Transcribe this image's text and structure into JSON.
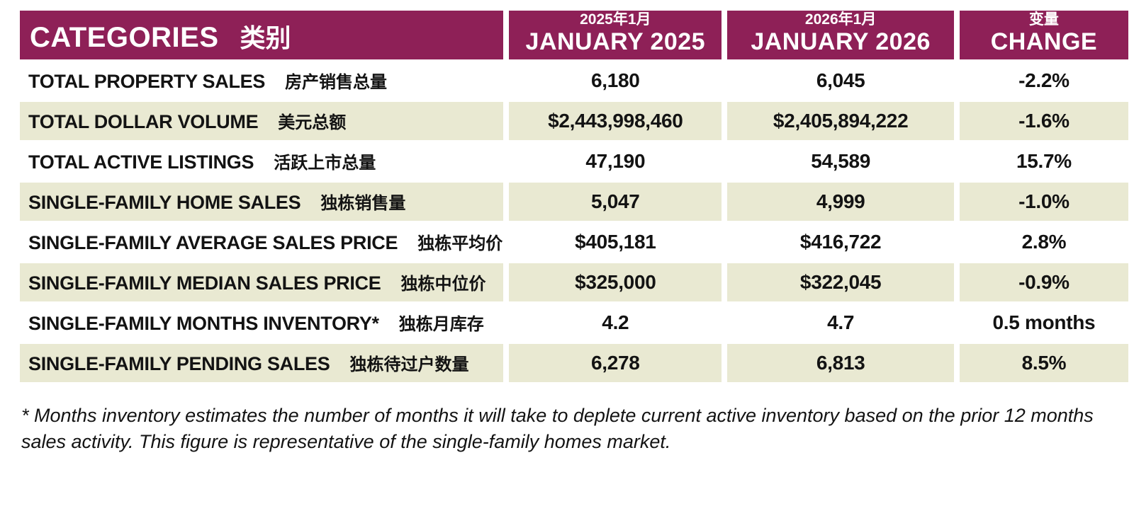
{
  "colors": {
    "header_bg": "#8e2057",
    "alt_row_bg": "#e9e9d2",
    "header_text": "#ffffff",
    "body_text": "#131313"
  },
  "chart_data": {
    "type": "table",
    "title": "Real estate market comparison table, January 2025 vs January 2026",
    "header": {
      "categories": {
        "en": "CATEGORIES",
        "zh": "类别"
      },
      "jan2025": {
        "en": "JANUARY 2025",
        "zh": "2025年1月"
      },
      "jan2026": {
        "en": "JANUARY 2026",
        "zh": "2026年1月"
      },
      "change": {
        "en": "CHANGE",
        "zh": "变量"
      }
    },
    "rows": [
      {
        "en": "TOTAL PROPERTY SALES",
        "zh": "房产销售总量",
        "jan2025": "6,180",
        "jan2026": "6,045",
        "change": "-2.2%"
      },
      {
        "en": "TOTAL DOLLAR VOLUME",
        "zh": "美元总额",
        "jan2025": "$2,443,998,460",
        "jan2026": "$2,405,894,222",
        "change": "-1.6%"
      },
      {
        "en": "TOTAL ACTIVE LISTINGS",
        "zh": "活跃上市总量",
        "jan2025": "47,190",
        "jan2026": "54,589",
        "change": "15.7%"
      },
      {
        "en": "SINGLE-FAMILY HOME SALES",
        "zh": "独栋销售量",
        "jan2025": "5,047",
        "jan2026": "4,999",
        "change": "-1.0%"
      },
      {
        "en": "SINGLE-FAMILY AVERAGE SALES PRICE",
        "zh": "独栋平均价",
        "jan2025": "$405,181",
        "jan2026": "$416,722",
        "change": "2.8%"
      },
      {
        "en": "SINGLE-FAMILY MEDIAN SALES PRICE",
        "zh": "独栋中位价",
        "jan2025": "$325,000",
        "jan2026": "$322,045",
        "change": "-0.9%"
      },
      {
        "en": "SINGLE-FAMILY MONTHS INVENTORY*",
        "zh": "独栋月库存",
        "jan2025": "4.2",
        "jan2026": "4.7",
        "change": "0.5 months"
      },
      {
        "en": "SINGLE-FAMILY PENDING SALES",
        "zh": "独栋待过户数量",
        "jan2025": "6,278",
        "jan2026": "6,813",
        "change": "8.5%"
      }
    ]
  },
  "footnote": {
    "line1": "* Months inventory estimates the number of months it will take to deplete current active inventory based on the prior 12 months",
    "line2": "sales activity. This figure is representative of the single-family homes market."
  }
}
